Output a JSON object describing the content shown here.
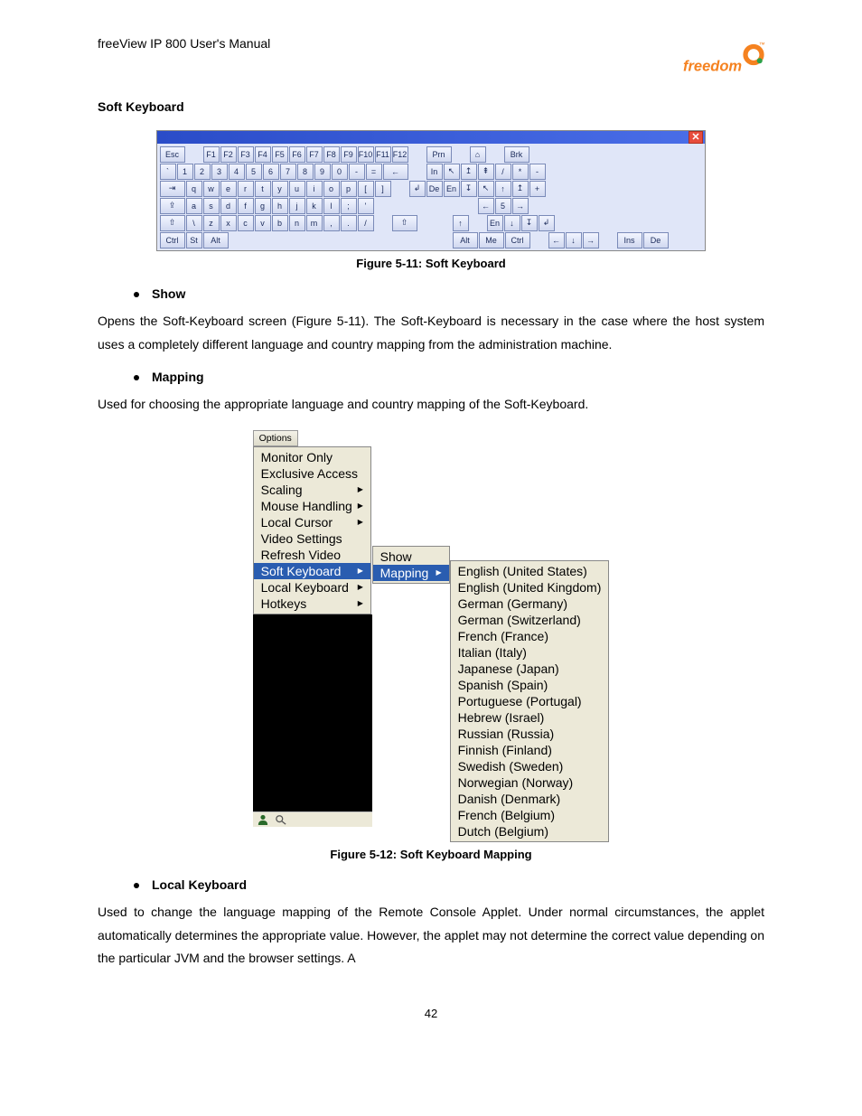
{
  "header": {
    "title": "freeView IP 800 User's Manual"
  },
  "logo": {
    "text": "freedom",
    "accent_color": "#f58220",
    "dot_color": "#2aa24a"
  },
  "section_title": "Soft Keyboard",
  "figure1": {
    "caption": "Figure 5-11: Soft Keyboard",
    "close_glyph": "✕",
    "rows": [
      [
        "Esc",
        "",
        "F1",
        "F2",
        "F3",
        "F4",
        "F5",
        "F6",
        "F7",
        "F8",
        "F9",
        "F10",
        "F11",
        "F12",
        "",
        "Prn",
        "",
        "⌂",
        "",
        "Brk",
        ""
      ],
      [
        "`",
        "1",
        "2",
        "3",
        "4",
        "5",
        "6",
        "7",
        "8",
        "9",
        "0",
        "-",
        "=",
        "←",
        "",
        "In",
        "↖",
        "↥",
        "⇞",
        "/",
        "*",
        "-"
      ],
      [
        "⇥",
        "q",
        "w",
        "e",
        "r",
        "t",
        "y",
        "u",
        "i",
        "o",
        "p",
        "[",
        "]",
        "",
        "↲",
        "De",
        "En",
        "↧",
        "↖",
        "↑",
        "↥",
        "+"
      ],
      [
        "⇪",
        "a",
        "s",
        "d",
        "f",
        "g",
        "h",
        "j",
        "k",
        "l",
        ";",
        "'",
        "",
        "",
        "",
        "",
        "",
        "",
        "←",
        "5",
        "→",
        ""
      ],
      [
        "⇧",
        "\\",
        "z",
        "x",
        "c",
        "v",
        "b",
        "n",
        "m",
        ",",
        ".",
        "/",
        "",
        "⇧",
        "",
        "",
        "↑",
        "",
        "En",
        "↓",
        "↧",
        "↲"
      ],
      [
        "Ctrl",
        "St",
        "Alt",
        "",
        "",
        "",
        "",
        "",
        "",
        "",
        "Alt",
        "Me",
        "Ctrl",
        "",
        "←",
        "↓",
        "→",
        "",
        "Ins",
        "De",
        "",
        ""
      ]
    ]
  },
  "bullet_show": {
    "label": "Show"
  },
  "para_show": "Opens the Soft-Keyboard screen (Figure 5-11). The Soft-Keyboard is necessary in the case where the host system uses a completely different language and country mapping from the administration machine.",
  "bullet_mapping": {
    "label": "Mapping"
  },
  "para_mapping": "Used for choosing the appropriate language and country mapping of the Soft-Keyboard.",
  "figure2": {
    "caption": "Figure 5-12: Soft Keyboard Mapping",
    "options_label": "Options",
    "menu": [
      {
        "label": "Monitor Only",
        "arrow": false
      },
      {
        "label": "Exclusive Access",
        "arrow": false
      },
      {
        "label": "Scaling",
        "arrow": true
      },
      {
        "label": "Mouse Handling",
        "arrow": true
      },
      {
        "label": "Local Cursor",
        "arrow": true
      },
      {
        "label": "Video Settings",
        "arrow": false
      },
      {
        "label": "Refresh Video",
        "arrow": false
      },
      {
        "label": "Soft Keyboard",
        "arrow": true,
        "hl": true
      },
      {
        "label": "Local Keyboard",
        "arrow": true
      },
      {
        "label": "Hotkeys",
        "arrow": true
      }
    ],
    "submenu": [
      {
        "label": "Show",
        "arrow": false
      },
      {
        "label": "Mapping",
        "arrow": true,
        "hl": true
      }
    ],
    "languages": [
      "English (United States)",
      "English (United Kingdom)",
      "German (Germany)",
      "German (Switzerland)",
      "French (France)",
      "Italian (Italy)",
      "Japanese (Japan)",
      "Spanish (Spain)",
      "Portuguese (Portugal)",
      "Hebrew (Israel)",
      "Russian (Russia)",
      "Finnish (Finland)",
      "Swedish (Sweden)",
      "Norwegian (Norway)",
      "Danish (Denmark)",
      "French (Belgium)",
      "Dutch (Belgium)"
    ]
  },
  "bullet_local": {
    "label": "Local Keyboard"
  },
  "para_local": "Used to change the language mapping of the Remote Console Applet. Under normal circumstances, the applet automatically determines the appropriate value. However, the applet may not determine the correct value depending on the particular JVM and the browser settings. A",
  "page_number": "42"
}
